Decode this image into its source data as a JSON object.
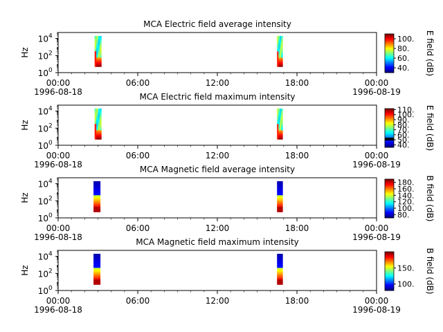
{
  "chart_data": [
    {
      "type": "heatmap",
      "title": "MCA  Electric field average intensity",
      "ylabel": "Hz",
      "y_scale": "log",
      "ylim": [
        1,
        50000
      ],
      "y_ticks": [
        {
          "base": "10",
          "exp": "0"
        },
        {
          "base": "10",
          "exp": "2"
        },
        {
          "base": "10",
          "exp": "4"
        }
      ],
      "x_ticks": [
        "00:00",
        "06:00",
        "12:00",
        "18:00",
        "00:00"
      ],
      "x_dates": [
        "1996-08-18",
        "1996-08-19"
      ],
      "xlim": [
        "1996-08-18 00:00",
        "1996-08-19 00:00"
      ],
      "colorbar": {
        "label": "E field (dB)",
        "range": [
          30,
          110
        ],
        "ticks": [
          "40.",
          "60.",
          "80.",
          "100."
        ]
      },
      "data_blocks": [
        {
          "start": "1996-08-18 02:45",
          "end": "1996-08-18 03:15",
          "freq_range": [
            5,
            20000
          ]
        },
        {
          "start": "1996-08-18 16:30",
          "end": "1996-08-18 16:55",
          "freq_range": [
            5,
            20000
          ]
        }
      ],
      "dominant_levels": [
        "high near 10 Hz",
        "mid-range (green/cyan) above 100 Hz"
      ]
    },
    {
      "type": "heatmap",
      "title": "MCA  Electric field maximum intensity",
      "ylabel": "Hz",
      "y_scale": "log",
      "ylim": [
        1,
        50000
      ],
      "y_ticks": [
        {
          "base": "10",
          "exp": "0"
        },
        {
          "base": "10",
          "exp": "2"
        },
        {
          "base": "10",
          "exp": "4"
        }
      ],
      "x_ticks": [
        "00:00",
        "06:00",
        "12:00",
        "18:00",
        "00:00"
      ],
      "x_dates": [
        "1996-08-18",
        "1996-08-19"
      ],
      "xlim": [
        "1996-08-18 00:00",
        "1996-08-19 00:00"
      ],
      "colorbar": {
        "label": "E field (dB)",
        "range": [
          35,
          112
        ],
        "ticks": [
          "40.",
          "50.",
          "60.",
          "70.",
          "80.",
          "90.",
          "100.",
          "110."
        ]
      },
      "data_blocks": [
        {
          "start": "1996-08-18 02:45",
          "end": "1996-08-18 03:15",
          "freq_range": [
            5,
            20000
          ]
        },
        {
          "start": "1996-08-18 16:30",
          "end": "1996-08-18 16:55",
          "freq_range": [
            5,
            20000
          ]
        }
      ],
      "dominant_levels": [
        "high near 10 Hz",
        "mid-range (green/cyan) above 100 Hz"
      ]
    },
    {
      "type": "heatmap",
      "title": "MCA  Magnetic field average intensity",
      "ylabel": "Hz",
      "y_scale": "log",
      "ylim": [
        1,
        50000
      ],
      "y_ticks": [
        {
          "base": "10",
          "exp": "0"
        },
        {
          "base": "10",
          "exp": "2"
        },
        {
          "base": "10",
          "exp": "4"
        }
      ],
      "x_ticks": [
        "00:00",
        "06:00",
        "12:00",
        "18:00",
        "00:00"
      ],
      "x_dates": [
        "1996-08-18",
        "1996-08-19"
      ],
      "xlim": [
        "1996-08-18 00:00",
        "1996-08-19 00:00"
      ],
      "colorbar": {
        "label": "B field (dB)",
        "range": [
          70,
          190
        ],
        "ticks": [
          "80.",
          "100.",
          "120.",
          "140.",
          "160.",
          "180."
        ]
      },
      "data_blocks": [
        {
          "start": "1996-08-18 02:40",
          "end": "1996-08-18 03:10",
          "freq_range": [
            5,
            20000
          ]
        },
        {
          "start": "1996-08-18 16:30",
          "end": "1996-08-18 16:55",
          "freq_range": [
            5,
            20000
          ]
        }
      ],
      "dominant_levels": [
        "high (red/orange) below 100 Hz",
        "low (blue) above 1000 Hz"
      ]
    },
    {
      "type": "heatmap",
      "title": "MCA  Magnetic field maximum intensity",
      "ylabel": "Hz",
      "y_scale": "log",
      "ylim": [
        1,
        50000
      ],
      "y_ticks": [
        {
          "base": "10",
          "exp": "0"
        },
        {
          "base": "10",
          "exp": "2"
        },
        {
          "base": "10",
          "exp": "4"
        }
      ],
      "x_ticks": [
        "00:00",
        "06:00",
        "12:00",
        "18:00",
        "00:00"
      ],
      "x_dates": [
        "1996-08-18",
        "1996-08-19"
      ],
      "xlim": [
        "1996-08-18 00:00",
        "1996-08-19 00:00"
      ],
      "colorbar": {
        "label": "B field (dB)",
        "range": [
          80,
          200
        ],
        "ticks": [
          "100.",
          "150."
        ]
      },
      "data_blocks": [
        {
          "start": "1996-08-18 02:40",
          "end": "1996-08-18 03:10",
          "freq_range": [
            5,
            20000
          ]
        },
        {
          "start": "1996-08-18 16:30",
          "end": "1996-08-18 16:55",
          "freq_range": [
            5,
            20000
          ]
        }
      ],
      "dominant_levels": [
        "high (red/orange) below 100 Hz",
        "low (blue) above 1000 Hz"
      ]
    }
  ]
}
